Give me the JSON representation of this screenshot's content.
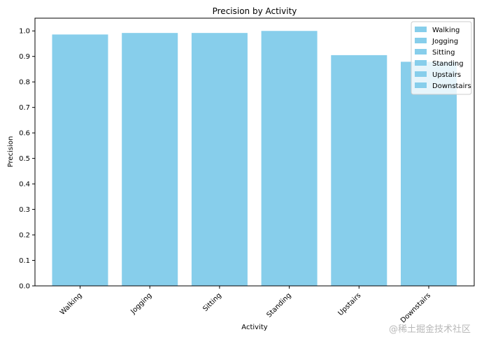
{
  "chart_data": {
    "type": "bar",
    "title": "Precision by Activity",
    "xlabel": "Activity",
    "ylabel": "Precision",
    "categories": [
      "Walking",
      "Jogging",
      "Sitting",
      "Standing",
      "Upstairs",
      "Downstairs"
    ],
    "values": [
      0.986,
      0.992,
      0.992,
      1.0,
      0.905,
      0.879
    ],
    "ylim": [
      0,
      1.05
    ],
    "yticks": [
      "0.0",
      "0.1",
      "0.2",
      "0.3",
      "0.4",
      "0.5",
      "0.6",
      "0.7",
      "0.8",
      "0.9",
      "1.0"
    ],
    "grid": false,
    "legend": {
      "position": "top-right",
      "entries": [
        "Walking",
        "Jogging",
        "Sitting",
        "Standing",
        "Upstairs",
        "Downstairs"
      ]
    },
    "bar_color": "#87ceeb"
  },
  "watermark": "@稀土掘金技术社区"
}
